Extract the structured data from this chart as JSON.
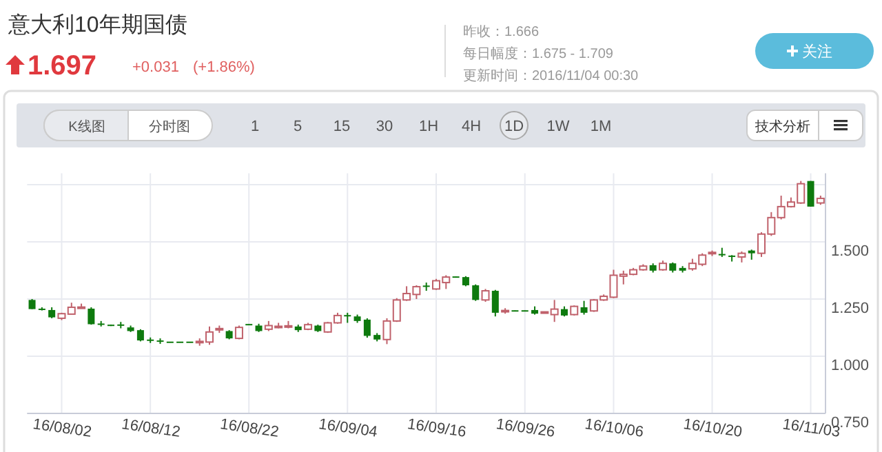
{
  "chart_data": {
    "type": "candlestick",
    "title": "意大利10年期国债",
    "annotations": [
      "1.697",
      "+0.031",
      "(+1.86%)",
      "昨收：1.666",
      "每日幅度：1.675 - 1.709",
      "更新时间：2016/11/04 00:30",
      "关注",
      "K线图",
      "分时图",
      "1",
      "5",
      "15",
      "30",
      "1H",
      "4H",
      "1D",
      "1W",
      "1M",
      "技术分析"
    ],
    "categories": [
      null,
      null,
      null,
      "16/08/02",
      null,
      null,
      null,
      null,
      null,
      null,
      null,
      null,
      "16/08/12",
      null,
      null,
      null,
      null,
      null,
      null,
      null,
      null,
      null,
      "16/08/22",
      null,
      null,
      null,
      null,
      null,
      null,
      null,
      null,
      null,
      "16/09/04",
      null,
      null,
      null,
      null,
      null,
      null,
      null,
      null,
      "16/09/16",
      null,
      null,
      null,
      null,
      null,
      null,
      null,
      null,
      "16/09/26",
      null,
      null,
      null,
      null,
      null,
      null,
      null,
      null,
      "16/10/06",
      null,
      null,
      null,
      null,
      null,
      null,
      null,
      null,
      null,
      "16/10/20",
      null,
      null,
      null,
      null,
      null,
      null,
      null,
      null,
      null,
      "16/11/03",
      null
    ],
    "ohlc": [
      [
        1.246,
        1.25,
        1.206,
        1.206
      ],
      [
        1.206,
        1.214,
        1.2,
        1.204
      ],
      [
        1.202,
        1.214,
        1.166,
        1.17
      ],
      [
        1.166,
        1.19,
        1.158,
        1.186
      ],
      [
        1.184,
        1.234,
        1.184,
        1.214
      ],
      [
        1.21,
        1.23,
        1.21,
        1.214
      ],
      [
        1.208,
        1.214,
        1.138,
        1.14
      ],
      [
        1.142,
        1.154,
        1.13,
        1.138
      ],
      [
        1.136,
        1.138,
        1.132,
        1.134
      ],
      [
        1.138,
        1.15,
        1.122,
        1.134
      ],
      [
        1.126,
        1.134,
        1.106,
        1.11
      ],
      [
        1.114,
        1.118,
        1.065,
        1.069
      ],
      [
        1.072,
        1.082,
        1.058,
        1.068
      ],
      [
        1.068,
        1.078,
        1.054,
        1.064
      ],
      [
        1.062,
        1.062,
        1.06,
        1.06
      ],
      [
        1.062,
        1.062,
        1.06,
        1.06
      ],
      [
        1.062,
        1.062,
        1.06,
        1.06
      ],
      [
        1.06,
        1.078,
        1.046,
        1.064
      ],
      [
        1.062,
        1.13,
        1.05,
        1.106
      ],
      [
        1.116,
        1.134,
        1.102,
        1.12
      ],
      [
        1.11,
        1.114,
        1.074,
        1.078
      ],
      [
        1.078,
        1.134,
        1.074,
        1.126
      ],
      [
        1.138,
        1.14,
        1.136,
        1.138
      ],
      [
        1.134,
        1.142,
        1.106,
        1.11
      ],
      [
        1.118,
        1.154,
        1.11,
        1.134
      ],
      [
        1.126,
        1.146,
        1.122,
        1.13
      ],
      [
        1.128,
        1.154,
        1.122,
        1.132
      ],
      [
        1.13,
        1.138,
        1.106,
        1.114
      ],
      [
        1.118,
        1.146,
        1.114,
        1.138
      ],
      [
        1.134,
        1.138,
        1.106,
        1.11
      ],
      [
        1.106,
        1.15,
        1.102,
        1.146
      ],
      [
        1.146,
        1.19,
        1.142,
        1.178
      ],
      [
        1.18,
        1.19,
        1.146,
        1.174
      ],
      [
        1.174,
        1.182,
        1.146,
        1.154
      ],
      [
        1.16,
        1.166,
        1.081,
        1.089
      ],
      [
        1.093,
        1.101,
        1.065,
        1.073
      ],
      [
        1.073,
        1.166,
        1.053,
        1.154
      ],
      [
        1.154,
        1.254,
        1.15,
        1.246
      ],
      [
        1.246,
        1.306,
        1.242,
        1.274
      ],
      [
        1.27,
        1.31,
        1.25,
        1.304
      ],
      [
        1.308,
        1.322,
        1.286,
        1.304
      ],
      [
        1.294,
        1.338,
        1.29,
        1.33
      ],
      [
        1.322,
        1.354,
        1.294,
        1.346
      ],
      [
        1.346,
        1.348,
        1.344,
        1.346
      ],
      [
        1.346,
        1.35,
        1.306,
        1.31
      ],
      [
        1.31,
        1.314,
        1.242,
        1.246
      ],
      [
        1.246,
        1.294,
        1.238,
        1.286
      ],
      [
        1.286,
        1.29,
        1.174,
        1.19
      ],
      [
        1.196,
        1.21,
        1.186,
        1.198
      ],
      [
        1.198,
        1.2,
        1.196,
        1.198
      ],
      [
        1.198,
        1.2,
        1.196,
        1.198
      ],
      [
        1.202,
        1.218,
        1.182,
        1.186
      ],
      [
        1.19,
        1.194,
        1.188,
        1.192
      ],
      [
        1.182,
        1.246,
        1.15,
        1.206
      ],
      [
        1.206,
        1.218,
        1.174,
        1.178
      ],
      [
        1.182,
        1.222,
        1.178,
        1.218
      ],
      [
        1.214,
        1.242,
        1.182,
        1.19
      ],
      [
        1.198,
        1.25,
        1.194,
        1.246
      ],
      [
        1.246,
        1.27,
        1.242,
        1.262
      ],
      [
        1.258,
        1.378,
        1.254,
        1.354
      ],
      [
        1.35,
        1.374,
        1.314,
        1.358
      ],
      [
        1.358,
        1.386,
        1.354,
        1.378
      ],
      [
        1.378,
        1.402,
        1.374,
        1.394
      ],
      [
        1.398,
        1.406,
        1.366,
        1.374
      ],
      [
        1.378,
        1.418,
        1.374,
        1.406
      ],
      [
        1.406,
        1.41,
        1.366,
        1.374
      ],
      [
        1.386,
        1.394,
        1.366,
        1.374
      ],
      [
        1.382,
        1.426,
        1.374,
        1.406
      ],
      [
        1.402,
        1.45,
        1.394,
        1.442
      ],
      [
        1.448,
        1.462,
        1.438,
        1.454
      ],
      [
        1.446,
        1.474,
        1.434,
        1.442
      ],
      [
        1.438,
        1.442,
        1.414,
        1.436
      ],
      [
        1.434,
        1.458,
        1.41,
        1.45
      ],
      [
        1.462,
        1.466,
        1.422,
        1.45
      ],
      [
        1.45,
        1.542,
        1.434,
        1.534
      ],
      [
        1.534,
        1.63,
        1.526,
        1.606
      ],
      [
        1.606,
        1.702,
        1.598,
        1.654
      ],
      [
        1.654,
        1.694,
        1.65,
        1.674
      ],
      [
        1.67,
        1.766,
        1.666,
        1.754
      ],
      [
        1.766,
        1.766,
        1.654,
        1.654
      ],
      [
        1.67,
        1.702,
        1.662,
        1.69
      ]
    ],
    "colors": [
      "#0e7a0e",
      "#0e7a0e",
      "#0e7a0e",
      "#c0616b",
      "#c0616b",
      "#c0616b",
      "#0e7a0e",
      "#0e7a0e",
      "#0e7a0e",
      "#0e7a0e",
      "#0e7a0e",
      "#0e7a0e",
      "#0e7a0e",
      "#0e7a0e",
      "#0e7a0e",
      "#0e7a0e",
      "#0e7a0e",
      "#c0616b",
      "#c0616b",
      "#c0616b",
      "#0e7a0e",
      "#c0616b",
      "#0e7a0e",
      "#0e7a0e",
      "#c0616b",
      "#c0616b",
      "#c0616b",
      "#0e7a0e",
      "#c0616b",
      "#0e7a0e",
      "#c0616b",
      "#c0616b",
      "#0e7a0e",
      "#0e7a0e",
      "#0e7a0e",
      "#0e7a0e",
      "#c0616b",
      "#c0616b",
      "#c0616b",
      "#c0616b",
      "#0e7a0e",
      "#c0616b",
      "#c0616b",
      "#0e7a0e",
      "#0e7a0e",
      "#0e7a0e",
      "#c0616b",
      "#0e7a0e",
      "#c0616b",
      "#0e7a0e",
      "#0e7a0e",
      "#0e7a0e",
      "#c0616b",
      "#c0616b",
      "#0e7a0e",
      "#c0616b",
      "#0e7a0e",
      "#c0616b",
      "#c0616b",
      "#c0616b",
      "#c0616b",
      "#c0616b",
      "#c0616b",
      "#0e7a0e",
      "#c0616b",
      "#0e7a0e",
      "#0e7a0e",
      "#c0616b",
      "#c0616b",
      "#c0616b",
      "#0e7a0e",
      "#0e7a0e",
      "#c0616b",
      "#0e7a0e",
      "#c0616b",
      "#c0616b",
      "#c0616b",
      "#c0616b",
      "#c0616b",
      "#0e7a0e",
      "#c0616b"
    ],
    "ylim": [
      0.75,
      1.8
    ],
    "yticks": [
      {
        "value": 0.75,
        "label": "0.750"
      },
      {
        "value": 1,
        "label": "1.000"
      },
      {
        "value": 1.25,
        "label": "1.250"
      },
      {
        "value": 1.5,
        "label": "1.500"
      },
      {
        "value": 1.75,
        "label": null
      }
    ],
    "grid": true
  }
}
